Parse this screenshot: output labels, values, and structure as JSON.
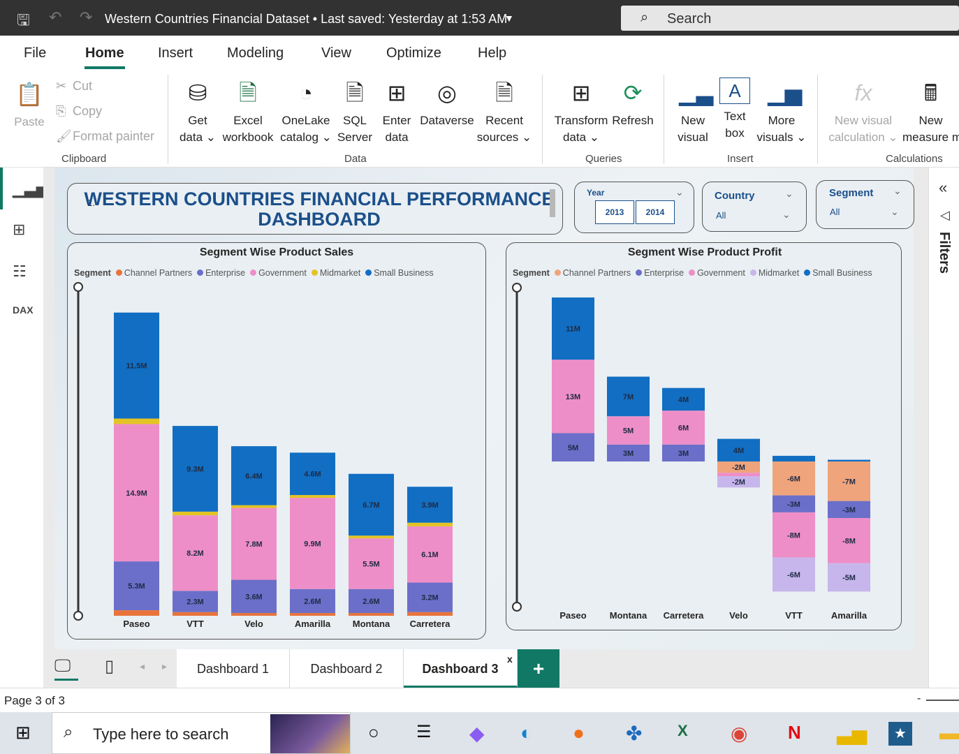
{
  "window": {
    "title": "Western Countries Financial Dataset • Last saved: Yesterday at 1:53 AM",
    "search_placeholder": "Search"
  },
  "menu": {
    "items": [
      "File",
      "Home",
      "Insert",
      "Modeling",
      "View",
      "Optimize",
      "Help"
    ],
    "active": "Home"
  },
  "ribbon": {
    "clipboard": {
      "paste": "Paste",
      "cut": "Cut",
      "copy": "Copy",
      "format_painter": "Format painter",
      "label": "Clipboard"
    },
    "data": {
      "get_data": [
        "Get",
        "data ⌄"
      ],
      "excel": [
        "Excel",
        "workbook"
      ],
      "onelake": [
        "OneLake",
        "catalog ⌄"
      ],
      "sql": [
        "SQL",
        "Server"
      ],
      "enter": [
        "Enter",
        "data"
      ],
      "dataverse": [
        "Dataverse",
        ""
      ],
      "recent": [
        "Recent",
        "sources ⌄"
      ],
      "label": "Data"
    },
    "queries": {
      "transform": [
        "Transform",
        "data ⌄"
      ],
      "refresh": [
        "Refresh",
        ""
      ],
      "label": "Queries"
    },
    "insert": {
      "new_visual": [
        "New",
        "visual"
      ],
      "text_box": [
        "Text",
        "box"
      ],
      "more_visuals": [
        "More",
        "visuals ⌄"
      ],
      "label": "Insert"
    },
    "calculations": {
      "new_visual_calc": [
        "New visual",
        "calculation ⌄"
      ],
      "new_measure": [
        "New",
        "measure m"
      ],
      "label": "Calculations"
    }
  },
  "dashboard": {
    "title_num": "1.",
    "title_line1": "WESTERN COUNTRIES FINANCIAL PERFORMANCE",
    "title_line2": "DASHBOARD",
    "year_slicer": {
      "title": "Year",
      "options": [
        "2013",
        "2014"
      ]
    },
    "country_slicer": {
      "title": "Country",
      "value": "All"
    },
    "segment_slicer": {
      "title": "Segment",
      "value": "All"
    }
  },
  "legend_label": "Segment",
  "chart_data": [
    {
      "type": "bar",
      "stacked": true,
      "title": "Segment Wise Product Sales",
      "legend_title": "Segment",
      "legend_placement": "top-left",
      "categories": [
        "Paseo",
        "VTT",
        "Velo",
        "Amarilla",
        "Montana",
        "Carretera"
      ],
      "series": [
        {
          "name": "Channel Partners",
          "color": "#e8743b",
          "values": [
            0.6,
            0.4,
            0.3,
            0.3,
            0.3,
            0.4
          ],
          "labels": [
            "",
            "",
            "",
            "",
            "",
            ""
          ]
        },
        {
          "name": "Enterprise",
          "color": "#6b6fc9",
          "values": [
            5.3,
            2.3,
            3.6,
            2.6,
            2.6,
            3.2
          ],
          "labels": [
            "5.3M",
            "2.3M",
            "3.6M",
            "2.6M",
            "2.6M",
            "3.2M"
          ]
        },
        {
          "name": "Government",
          "color": "#ee8ec8",
          "values": [
            14.9,
            8.2,
            7.8,
            9.9,
            5.5,
            6.1
          ],
          "labels": [
            "14.9M",
            "8.2M",
            "7.8M",
            "9.9M",
            "5.5M",
            "6.1M"
          ]
        },
        {
          "name": "Midmarket",
          "color": "#e3c325",
          "values": [
            0.6,
            0.4,
            0.3,
            0.3,
            0.3,
            0.4
          ],
          "labels": [
            "",
            "",
            "",
            "",
            "",
            ""
          ]
        },
        {
          "name": "Small Business",
          "color": "#116ec2",
          "values": [
            11.5,
            9.3,
            6.4,
            4.6,
            6.7,
            3.9
          ],
          "labels": [
            "11.5M",
            "9.3M",
            "6.4M",
            "4.6M",
            "6.7M",
            "3.9M"
          ]
        }
      ]
    },
    {
      "type": "bar",
      "stacked": true,
      "title": "Segment Wise Product Profit",
      "legend_title": "Segment",
      "legend_placement": "top-left",
      "categories": [
        "Paseo",
        "Montana",
        "Carretera",
        "Velo",
        "VTT",
        "Amarilla"
      ],
      "series": [
        {
          "name": "Channel Partners",
          "color": "#f0a47c",
          "values": [
            0,
            0,
            0,
            -2,
            -6,
            -7
          ],
          "labels": [
            "",
            "",
            "",
            "-2M",
            "-6M",
            "-7M"
          ]
        },
        {
          "name": "Enterprise",
          "color": "#6b6fc9",
          "values": [
            5,
            3,
            3,
            0,
            -3,
            -3
          ],
          "labels": [
            "5M",
            "3M",
            "3M",
            "",
            "-3M",
            "-3M"
          ]
        },
        {
          "name": "Government",
          "color": "#ee8ec8",
          "values": [
            13,
            5,
            6,
            -0.6,
            -8,
            -8
          ],
          "labels": [
            "13M",
            "5M",
            "6M",
            "",
            "-8M",
            "-8M"
          ]
        },
        {
          "name": "Midmarket",
          "color": "#c7b6ec",
          "values": [
            0,
            0,
            0,
            -2,
            -6,
            -5
          ],
          "labels": [
            "",
            "",
            "",
            "-2M",
            "-6M",
            "-5M"
          ]
        },
        {
          "name": "Small Business",
          "color": "#116ec2",
          "values": [
            11,
            7,
            4,
            4,
            1,
            0.3
          ],
          "labels": [
            "11M",
            "7M",
            "4M",
            "4M",
            "",
            ""
          ]
        }
      ]
    }
  ],
  "pages": {
    "tabs": [
      "Dashboard 1",
      "Dashboard 2",
      "Dashboard 3"
    ],
    "active": "Dashboard 3",
    "close": "x",
    "add": "+"
  },
  "status": {
    "page": "Page 3 of 3"
  },
  "filters_label": "Filters",
  "taskbar": {
    "search_placeholder": "Type here to search"
  }
}
